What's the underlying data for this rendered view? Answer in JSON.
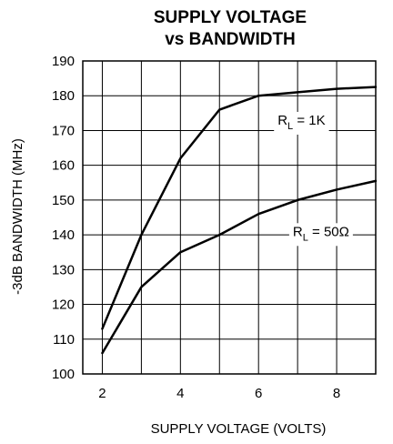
{
  "chart_data": {
    "type": "line",
    "title_lines": [
      "SUPPLY VOLTAGE",
      "vs BANDWIDTH"
    ],
    "xlabel": "SUPPLY VOLTAGE (VOLTS)",
    "ylabel": "-3dB BANDWIDTH (MHz)",
    "xlim": [
      1.5,
      9
    ],
    "ylim": [
      100,
      190
    ],
    "x_ticks": [
      2,
      4,
      6,
      8
    ],
    "y_ticks": [
      100,
      110,
      120,
      130,
      140,
      150,
      160,
      170,
      180,
      190
    ],
    "x_grid": [
      2,
      3,
      4,
      5,
      6,
      7,
      8
    ],
    "grid": true,
    "series": [
      {
        "label_main": "R",
        "label_sub": "L",
        "label_rest": " = 1K",
        "label_at": [
          7.1,
          173
        ],
        "x": [
          2,
          3,
          4,
          5,
          6,
          7,
          8,
          9
        ],
        "y": [
          113,
          140,
          162,
          176,
          180,
          181,
          182,
          182.5
        ]
      },
      {
        "label_main": "R",
        "label_sub": "L",
        "label_rest": " = 50Ω",
        "label_at": [
          7.6,
          141
        ],
        "x": [
          2,
          3,
          4,
          5,
          6,
          7,
          8,
          9
        ],
        "y": [
          106,
          125,
          135,
          140,
          146,
          150,
          153,
          155.5
        ]
      }
    ]
  }
}
